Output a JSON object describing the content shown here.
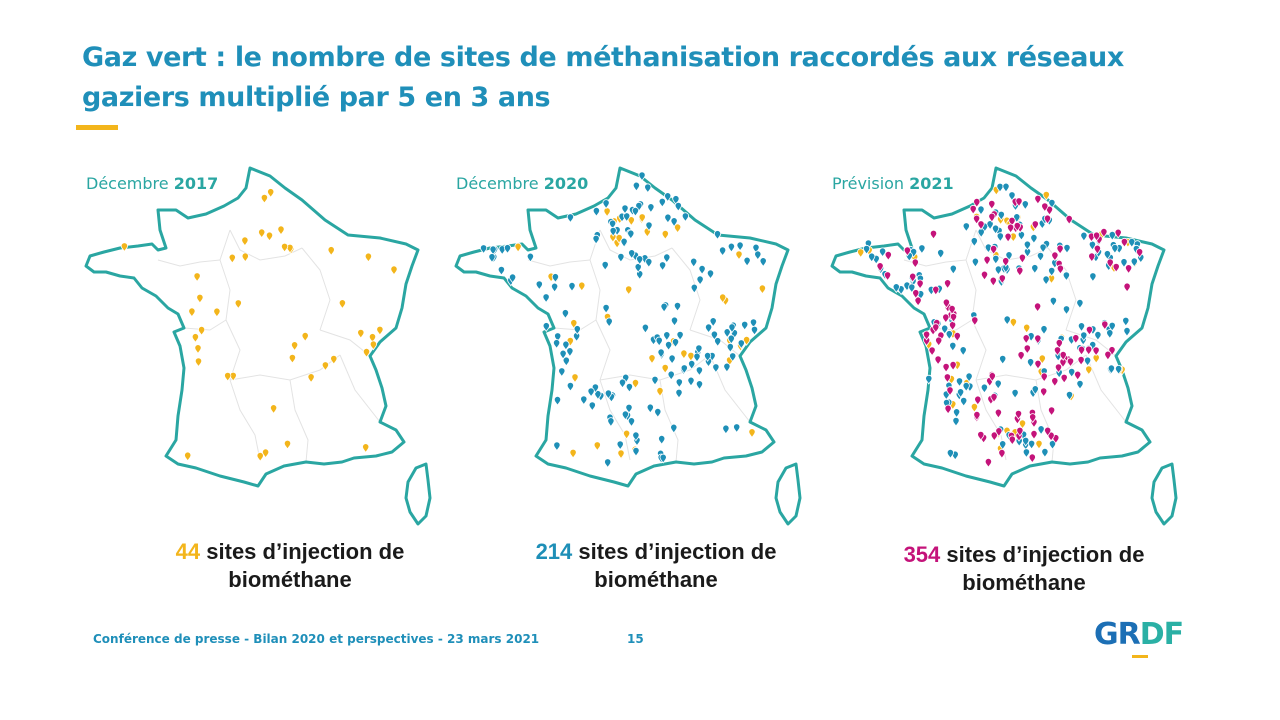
{
  "title": "Gaz vert : le nombre de sites de méthanisation raccordés aux réseaux gaziers multiplié par 5 en 3 ans",
  "colors": {
    "accent_title": "#1f8fb9",
    "label": "#2aa6a2",
    "outline": "#2aa6a2",
    "yellow": "#f3b51b",
    "blue": "#1e8fb7",
    "magenta": "#c4137a"
  },
  "maps": [
    {
      "label_prefix": "Décembre ",
      "label_year": "2017",
      "count": "44",
      "count_color": "#f3b51b",
      "caption_rest": " sites d’injection de",
      "caption_line2": "biométhane",
      "marker_colors": [
        "#f3b51b"
      ],
      "marker_count": 44
    },
    {
      "label_prefix": "Décembre ",
      "label_year": "2020",
      "count": "214",
      "count_color": "#1e8fb7",
      "caption_rest": " sites d’injection de",
      "caption_line2": "biométhane",
      "marker_colors": [
        "#f3b51b",
        "#1e8fb7"
      ],
      "marker_count": 214
    },
    {
      "label_prefix": "Prévision ",
      "label_year": "2021",
      "count": "354",
      "count_color": "#c4137a",
      "caption_rest": " sites d’injection de",
      "caption_line2": "biométhane",
      "marker_colors": [
        "#f3b51b",
        "#1e8fb7",
        "#c4137a"
      ],
      "marker_count": 354
    }
  ],
  "footer": "Conférence de presse - Bilan 2020 et perspectives - 23 mars 2021",
  "page_number": "15",
  "logo": {
    "part1": "GR",
    "part2": "DF"
  }
}
